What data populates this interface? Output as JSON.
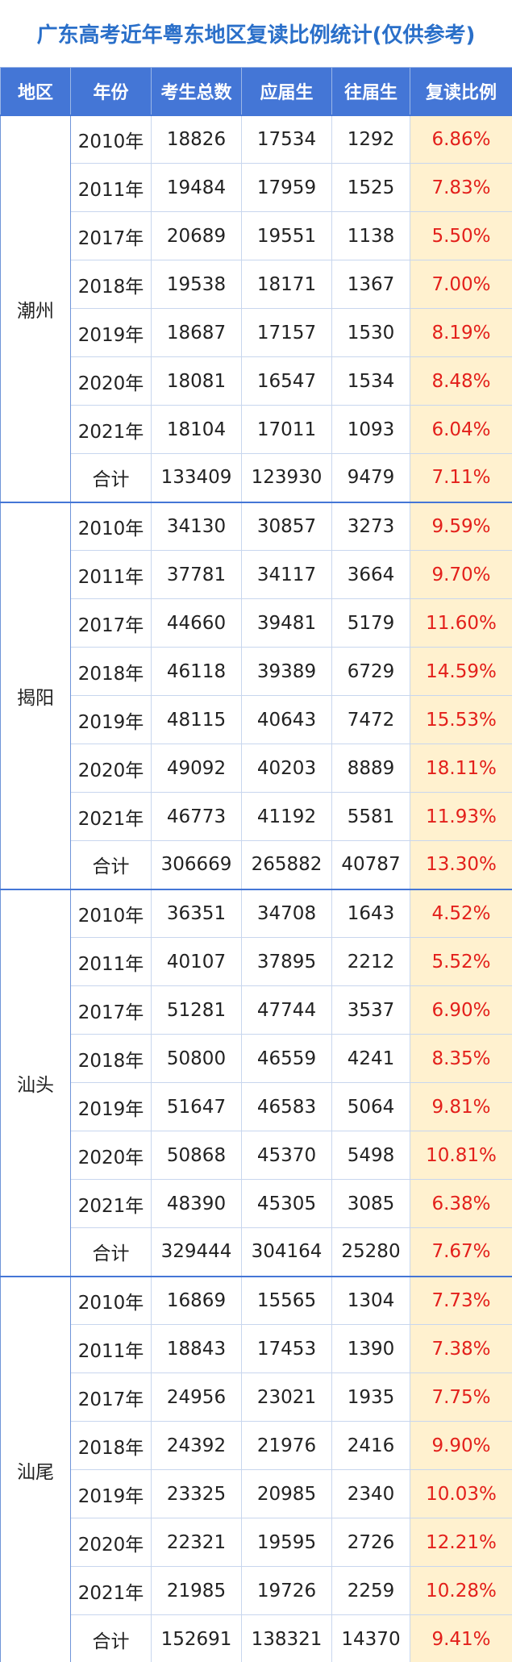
{
  "title": "广东高考近年粤东地区复读比例统计(仅供参考)",
  "headers": [
    "地区",
    "年份",
    "考生总数",
    "应届生",
    "往届生",
    "复读比例"
  ],
  "colors": {
    "header_bg": "#4476d6",
    "title": "#2a6fc9",
    "ratio_text": "#e3201b",
    "ratio_bg": "#fff1cf"
  },
  "regions": [
    {
      "name": "潮州",
      "rows": [
        [
          "2010年",
          "18826",
          "17534",
          "1292",
          "6.86%"
        ],
        [
          "2011年",
          "19484",
          "17959",
          "1525",
          "7.83%"
        ],
        [
          "2017年",
          "20689",
          "19551",
          "1138",
          "5.50%"
        ],
        [
          "2018年",
          "19538",
          "18171",
          "1367",
          "7.00%"
        ],
        [
          "2019年",
          "18687",
          "17157",
          "1530",
          "8.19%"
        ],
        [
          "2020年",
          "18081",
          "16547",
          "1534",
          "8.48%"
        ],
        [
          "2021年",
          "18104",
          "17011",
          "1093",
          "6.04%"
        ],
        [
          "合计",
          "133409",
          "123930",
          "9479",
          "7.11%"
        ]
      ]
    },
    {
      "name": "揭阳",
      "rows": [
        [
          "2010年",
          "34130",
          "30857",
          "3273",
          "9.59%"
        ],
        [
          "2011年",
          "37781",
          "34117",
          "3664",
          "9.70%"
        ],
        [
          "2017年",
          "44660",
          "39481",
          "5179",
          "11.60%"
        ],
        [
          "2018年",
          "46118",
          "39389",
          "6729",
          "14.59%"
        ],
        [
          "2019年",
          "48115",
          "40643",
          "7472",
          "15.53%"
        ],
        [
          "2020年",
          "49092",
          "40203",
          "8889",
          "18.11%"
        ],
        [
          "2021年",
          "46773",
          "41192",
          "5581",
          "11.93%"
        ],
        [
          "合计",
          "306669",
          "265882",
          "40787",
          "13.30%"
        ]
      ]
    },
    {
      "name": "汕头",
      "rows": [
        [
          "2010年",
          "36351",
          "34708",
          "1643",
          "4.52%"
        ],
        [
          "2011年",
          "40107",
          "37895",
          "2212",
          "5.52%"
        ],
        [
          "2017年",
          "51281",
          "47744",
          "3537",
          "6.90%"
        ],
        [
          "2018年",
          "50800",
          "46559",
          "4241",
          "8.35%"
        ],
        [
          "2019年",
          "51647",
          "46583",
          "5064",
          "9.81%"
        ],
        [
          "2020年",
          "50868",
          "45370",
          "5498",
          "10.81%"
        ],
        [
          "2021年",
          "48390",
          "45305",
          "3085",
          "6.38%"
        ],
        [
          "合计",
          "329444",
          "304164",
          "25280",
          "7.67%"
        ]
      ]
    },
    {
      "name": "汕尾",
      "rows": [
        [
          "2010年",
          "16869",
          "15565",
          "1304",
          "7.73%"
        ],
        [
          "2011年",
          "18843",
          "17453",
          "1390",
          "7.38%"
        ],
        [
          "2017年",
          "24956",
          "23021",
          "1935",
          "7.75%"
        ],
        [
          "2018年",
          "24392",
          "21976",
          "2416",
          "9.90%"
        ],
        [
          "2019年",
          "23325",
          "20985",
          "2340",
          "10.03%"
        ],
        [
          "2020年",
          "22321",
          "19595",
          "2726",
          "12.21%"
        ],
        [
          "2021年",
          "21985",
          "19726",
          "2259",
          "10.28%"
        ],
        [
          "合计",
          "152691",
          "138321",
          "14370",
          "9.41%"
        ]
      ]
    }
  ]
}
